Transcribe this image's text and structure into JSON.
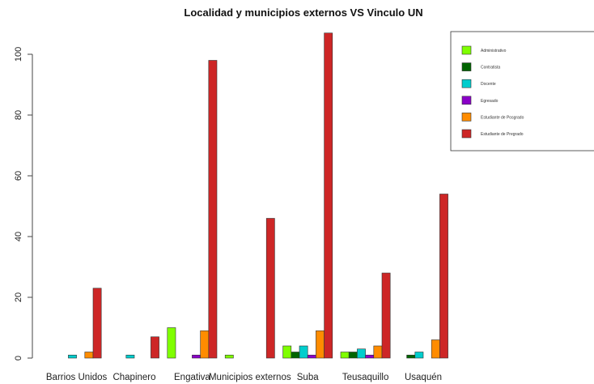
{
  "chart_data": {
    "type": "bar",
    "title": "Localidad y municipios externos VS Vinculo UN",
    "xlabel": "",
    "ylabel": "",
    "ylim": [
      0,
      108
    ],
    "yticks": [
      0,
      20,
      40,
      60,
      80,
      100
    ],
    "categories": [
      "Barrios Unidos",
      "Chapinero",
      "Engativa",
      "Municipios externos",
      "Suba",
      "Teusaquillo",
      "Usaquén"
    ],
    "legend_position": "top-right",
    "grid": false,
    "series": [
      {
        "name": "Administrativo",
        "color": "#7fff00",
        "values": [
          0,
          0,
          10,
          1,
          4,
          2,
          0
        ]
      },
      {
        "name": "Contratista",
        "color": "#006400",
        "values": [
          0,
          0,
          0,
          0,
          2,
          2,
          1
        ]
      },
      {
        "name": "Docente",
        "color": "#00cdcd",
        "values": [
          1,
          1,
          0,
          0,
          4,
          3,
          2
        ]
      },
      {
        "name": "Egresado",
        "color": "#8a00c8",
        "values": [
          0,
          0,
          1,
          0,
          1,
          1,
          0
        ]
      },
      {
        "name": "Estudiante de Posgrado",
        "color": "#ff8c00",
        "values": [
          2,
          0,
          9,
          0,
          9,
          4,
          6
        ]
      },
      {
        "name": "Estudiante de Pregrado",
        "color": "#cd2626",
        "values": [
          23,
          7,
          98,
          46,
          107,
          28,
          54
        ]
      }
    ]
  }
}
